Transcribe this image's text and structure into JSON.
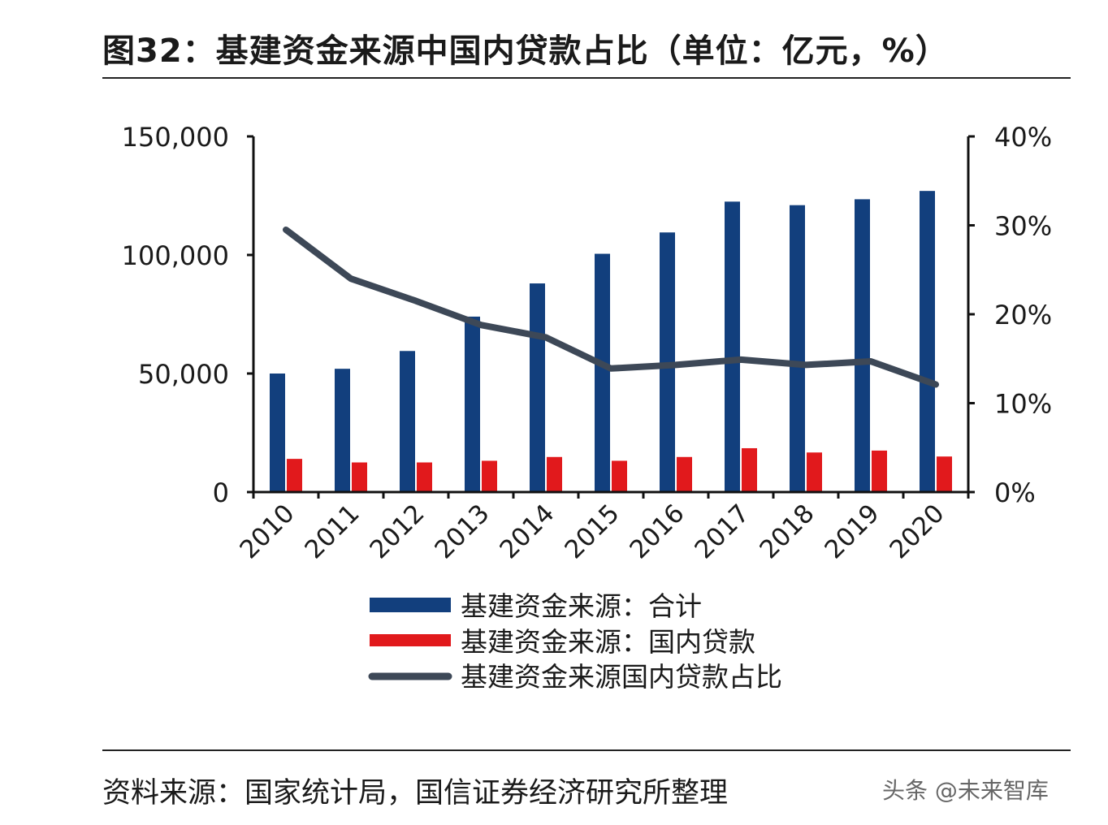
{
  "title": "图32：基建资金来源中国内贷款占比（单位：亿元，%）",
  "source": "资料来源：国家统计局，国信证券经济研究所整理",
  "watermark": "头条 @未来智库",
  "colors": {
    "total": "#123f7d",
    "domestic": "#e1191c",
    "ratio": "#3d4857",
    "axis": "#111111"
  },
  "chart_data": {
    "type": "bar",
    "categories": [
      "2010",
      "2011",
      "2012",
      "2013",
      "2014",
      "2015",
      "2016",
      "2017",
      "2018",
      "2019",
      "2020"
    ],
    "series": [
      {
        "name": "基建资金来源：合计",
        "type": "bar",
        "axis": "left",
        "values": [
          50000,
          52000,
          59500,
          74000,
          88000,
          100500,
          109500,
          122500,
          121000,
          123500,
          127000
        ]
      },
      {
        "name": "基建资金来源：国内贷款",
        "type": "bar",
        "axis": "left",
        "values": [
          14000,
          12500,
          12500,
          13200,
          14800,
          13200,
          14800,
          18500,
          16700,
          17500,
          15000
        ]
      },
      {
        "name": "基建资金来源国内贷款占比",
        "type": "line",
        "axis": "right",
        "values": [
          0.295,
          0.24,
          0.215,
          0.188,
          0.174,
          0.139,
          0.143,
          0.149,
          0.143,
          0.147,
          0.121
        ]
      }
    ],
    "y_left": {
      "ylim": [
        0,
        150000
      ],
      "ticks": [
        0,
        50000,
        100000,
        150000
      ],
      "tick_labels": [
        "0",
        "50,000",
        "100,000",
        "150,000"
      ]
    },
    "y_right": {
      "ylim": [
        0,
        0.4
      ],
      "ticks": [
        0,
        0.1,
        0.2,
        0.3,
        0.4
      ],
      "tick_labels": [
        "0%",
        "10%",
        "20%",
        "30%",
        "40%"
      ]
    },
    "legend_position": "bottom",
    "grid": false
  }
}
